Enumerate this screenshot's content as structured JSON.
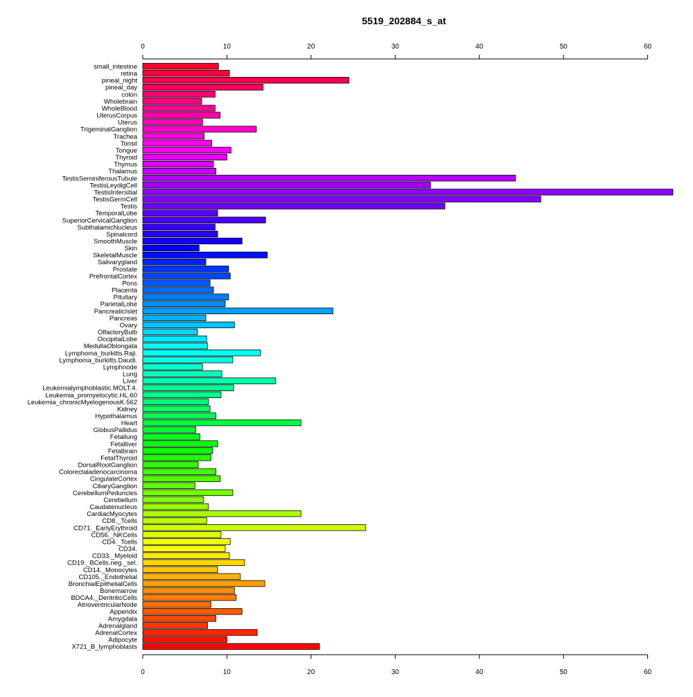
{
  "chart_data": {
    "type": "bar",
    "orientation": "horizontal",
    "title": "5519_202884_s_at",
    "xlabel": "",
    "ylabel": "",
    "xlim": [
      0,
      63
    ],
    "xticks": [
      0,
      10,
      20,
      30,
      40,
      50,
      60
    ],
    "grid": false,
    "legend": "none",
    "bar_border_color": "#000000",
    "color_scheme": "rainbow (red to magenta to blue to cyan to green to yellow to red)",
    "categories": [
      "small_intestine",
      "retina",
      "pineal_night",
      "pineal_day",
      "colon",
      "Wholebrain",
      "WholeBlood",
      "UterusCorpus",
      "Uterus",
      "TrigeminalGanglion",
      "Trachea",
      "Tonsil",
      "Tongue",
      "Thyroid",
      "Thymus",
      "Thalamus",
      "TestisSeminiferousTubule",
      "TestisLeydigCell",
      "TestisIntersitial",
      "TestisGermCell",
      "Testis",
      "TemporalLobe",
      "SuperiorCervicalGanglion",
      "SubthalamicNucleus",
      "Spinalcord",
      "SmoothMuscle",
      "Skin",
      "SkeletalMuscle",
      "Salivarygland",
      "Prostate",
      "PrefrontalCortex",
      "Pons",
      "Placenta",
      "Pituitary",
      "ParietalLobe",
      "PancreaticIslet",
      "Pancreas",
      "Ovary",
      "OlfactoryBulb",
      "OccipitalLobe",
      "MedullaOblongata",
      "Lymphoma_burkitts.Raji.",
      "Lymphoma_burkitts.Daudi.",
      "Lymphnode",
      "Lung",
      "Liver",
      "Leukemialymphoblastic.MOLT.4.",
      "Leukemia_promyelocytic.HL.60",
      "Leukemia_chronicMyelogenousK.562",
      "Kidney",
      "Hypothalamus",
      "Heart",
      "GlobusPallidus",
      "Fetallung",
      "Fetalliver",
      "Fetalbrain",
      "FetalThyroid",
      "DorsalRootGanglion",
      "Colorectaladenocarcinoma",
      "CingulateCortex",
      "CiliaryGanglion",
      "CerebellumPeduncles",
      "Cerebellum",
      "Caudatenucleus",
      "CardiacMyocytes",
      "CD8._Tcells",
      "CD71._EarlyErythroid",
      "CD56._NKCells",
      "CD4._Tcells",
      "CD34.",
      "CD33._Myeloid",
      "CD19._BCells.neg._sel.",
      "CD14._Monocytes",
      "CD105._Endothelial",
      "BronchialEpithelialCells",
      "Bonemarrow",
      "BDCA4._DentriticCells",
      "AtrioventricularNode",
      "Appendix",
      "Amygdala",
      "Adrenalgland",
      "AdrenalCortex",
      "Adipocyte",
      "X721_B_lymphoblasts"
    ],
    "values": [
      9.0,
      10.3,
      24.5,
      14.3,
      8.6,
      7.0,
      8.6,
      9.2,
      7.1,
      13.5,
      7.3,
      8.2,
      10.5,
      10.0,
      8.4,
      8.7,
      44.3,
      34.2,
      63.0,
      47.3,
      35.9,
      8.9,
      14.6,
      8.6,
      8.9,
      11.8,
      6.7,
      14.8,
      7.5,
      10.2,
      10.4,
      8.0,
      8.4,
      10.2,
      9.8,
      22.6,
      7.5,
      10.9,
      6.5,
      7.6,
      7.7,
      14.0,
      10.7,
      7.1,
      9.4,
      15.8,
      10.8,
      9.3,
      7.8,
      8.0,
      8.7,
      18.8,
      6.3,
      6.8,
      8.9,
      8.3,
      8.1,
      6.6,
      8.7,
      9.2,
      6.2,
      10.7,
      7.2,
      7.8,
      18.8,
      7.6,
      26.5,
      9.3,
      10.4,
      9.8,
      10.3,
      12.1,
      8.9,
      11.6,
      14.5,
      10.9,
      11.1,
      8.1,
      11.8,
      8.7,
      7.7,
      13.6,
      10.0,
      21.0
    ]
  }
}
